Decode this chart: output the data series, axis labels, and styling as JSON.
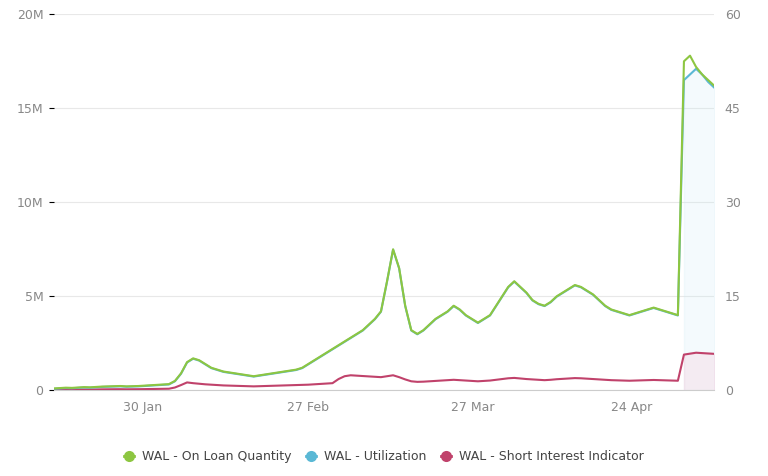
{
  "bg_color": "#ffffff",
  "grid_color": "#e8e8e8",
  "left_ylim": [
    0,
    20000000
  ],
  "right_ylim": [
    0,
    60
  ],
  "left_yticks": [
    0,
    5000000,
    10000000,
    15000000,
    20000000
  ],
  "left_yticklabels": [
    "0",
    "5M",
    "10M",
    "15M",
    "20M"
  ],
  "right_yticks": [
    0,
    15,
    30,
    45,
    60
  ],
  "right_yticklabels": [
    "0",
    "15",
    "30",
    "45",
    "60"
  ],
  "xtick_labels": [
    "30 Jan",
    "27 Feb",
    "27 Mar",
    "24 Apr"
  ],
  "xtick_positions": [
    0.135,
    0.385,
    0.635,
    0.875
  ],
  "colors": {
    "on_loan": "#8dc641",
    "utilization": "#5ab8d5",
    "short_interest": "#c0426b",
    "shaded_blue": "#c5e8f5",
    "shaded_pink": "#f5c0d5"
  },
  "legend": [
    {
      "label": "WAL - On Loan Quantity",
      "color": "#8dc641"
    },
    {
      "label": "WAL - Utilization",
      "color": "#5ab8d5"
    },
    {
      "label": "WAL - Short Interest Indicator",
      "color": "#c0426b"
    }
  ],
  "n_points": 110,
  "spike_idx": 104,
  "series_on_loan": [
    100000,
    120000,
    140000,
    130000,
    150000,
    170000,
    160000,
    180000,
    200000,
    210000,
    220000,
    230000,
    210000,
    220000,
    230000,
    250000,
    270000,
    290000,
    310000,
    330000,
    500000,
    900000,
    1500000,
    1700000,
    1600000,
    1400000,
    1200000,
    1100000,
    1000000,
    950000,
    900000,
    850000,
    800000,
    750000,
    800000,
    850000,
    900000,
    950000,
    1000000,
    1050000,
    1100000,
    1200000,
    1400000,
    1600000,
    1800000,
    2000000,
    2200000,
    2400000,
    2600000,
    2800000,
    3000000,
    3200000,
    3500000,
    3800000,
    4200000,
    5800000,
    7500000,
    6500000,
    4500000,
    3200000,
    3000000,
    3200000,
    3500000,
    3800000,
    4000000,
    4200000,
    4500000,
    4300000,
    4000000,
    3800000,
    3600000,
    3800000,
    4000000,
    4500000,
    5000000,
    5500000,
    5800000,
    5500000,
    5200000,
    4800000,
    4600000,
    4500000,
    4700000,
    5000000,
    5200000,
    5400000,
    5600000,
    5500000,
    5300000,
    5100000,
    4800000,
    4500000,
    4300000,
    4200000,
    4100000,
    4000000,
    4100000,
    4200000,
    4300000,
    4400000,
    4300000,
    4200000,
    4100000,
    4000000,
    17500000,
    17800000,
    17200000,
    16800000,
    16500000,
    16200000
  ],
  "series_utilization": [
    80000,
    100000,
    120000,
    110000,
    130000,
    150000,
    140000,
    160000,
    180000,
    190000,
    200000,
    210000,
    190000,
    200000,
    210000,
    230000,
    250000,
    270000,
    290000,
    310000,
    480000,
    880000,
    1480000,
    1680000,
    1580000,
    1380000,
    1180000,
    1080000,
    980000,
    930000,
    880000,
    830000,
    780000,
    730000,
    780000,
    830000,
    880000,
    930000,
    980000,
    1030000,
    1080000,
    1180000,
    1380000,
    1580000,
    1780000,
    1980000,
    2180000,
    2380000,
    2580000,
    2780000,
    2980000,
    3180000,
    3480000,
    3780000,
    4180000,
    5780000,
    7480000,
    6480000,
    4480000,
    3180000,
    2980000,
    3180000,
    3480000,
    3780000,
    3980000,
    4180000,
    4480000,
    4280000,
    3980000,
    3780000,
    3580000,
    3780000,
    3980000,
    4480000,
    4980000,
    5480000,
    5780000,
    5480000,
    5180000,
    4780000,
    4580000,
    4480000,
    4680000,
    4980000,
    5180000,
    5380000,
    5580000,
    5480000,
    5280000,
    5080000,
    4780000,
    4480000,
    4280000,
    4180000,
    4080000,
    3980000,
    4080000,
    4180000,
    4280000,
    4380000,
    4280000,
    4180000,
    4080000,
    3980000,
    16500000,
    16800000,
    17100000,
    16800000,
    16400000,
    16100000
  ],
  "series_short_interest": [
    30000,
    35000,
    40000,
    38000,
    42000,
    45000,
    43000,
    48000,
    52000,
    55000,
    58000,
    60000,
    55000,
    58000,
    60000,
    65000,
    70000,
    75000,
    80000,
    85000,
    150000,
    280000,
    420000,
    380000,
    350000,
    320000,
    300000,
    280000,
    260000,
    250000,
    240000,
    230000,
    220000,
    210000,
    220000,
    230000,
    240000,
    250000,
    260000,
    270000,
    280000,
    290000,
    300000,
    320000,
    340000,
    360000,
    380000,
    600000,
    750000,
    800000,
    780000,
    760000,
    740000,
    720000,
    700000,
    750000,
    800000,
    700000,
    580000,
    480000,
    450000,
    460000,
    480000,
    500000,
    520000,
    540000,
    560000,
    540000,
    520000,
    500000,
    480000,
    500000,
    520000,
    560000,
    600000,
    640000,
    660000,
    630000,
    600000,
    580000,
    560000,
    540000,
    560000,
    590000,
    610000,
    630000,
    650000,
    640000,
    620000,
    600000,
    580000,
    560000,
    540000,
    530000,
    520000,
    510000,
    520000,
    530000,
    540000,
    550000,
    540000,
    530000,
    520000,
    510000,
    1900000,
    1950000,
    2000000,
    1980000,
    1960000,
    1940000
  ]
}
